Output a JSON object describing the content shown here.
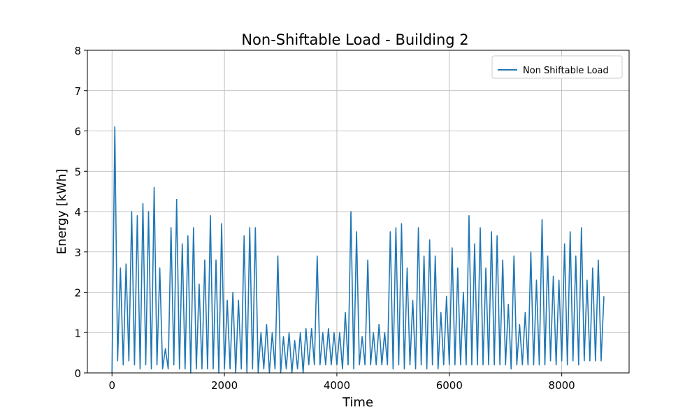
{
  "chart_data": {
    "type": "line",
    "title": "Non-Shiftable Load - Building 2",
    "xlabel": "Time",
    "ylabel": "Energy [kWh]",
    "x": [
      0,
      50,
      100,
      150,
      200,
      250,
      300,
      350,
      400,
      450,
      500,
      550,
      600,
      650,
      700,
      750,
      800,
      850,
      900,
      950,
      1000,
      1050,
      1100,
      1150,
      1200,
      1250,
      1300,
      1350,
      1400,
      1450,
      1500,
      1550,
      1600,
      1650,
      1700,
      1750,
      1800,
      1850,
      1900,
      1950,
      2000,
      2050,
      2100,
      2150,
      2200,
      2250,
      2300,
      2350,
      2400,
      2450,
      2500,
      2550,
      2600,
      2650,
      2700,
      2750,
      2800,
      2850,
      2900,
      2950,
      3000,
      3050,
      3100,
      3150,
      3200,
      3250,
      3300,
      3350,
      3400,
      3450,
      3500,
      3550,
      3600,
      3650,
      3700,
      3750,
      3800,
      3850,
      3900,
      3950,
      4000,
      4050,
      4100,
      4150,
      4200,
      4250,
      4300,
      4350,
      4400,
      4450,
      4500,
      4550,
      4600,
      4650,
      4700,
      4750,
      4800,
      4850,
      4900,
      4950,
      5000,
      5050,
      5100,
      5150,
      5200,
      5250,
      5300,
      5350,
      5400,
      5450,
      5500,
      5550,
      5600,
      5650,
      5700,
      5750,
      5800,
      5850,
      5900,
      5950,
      6000,
      6050,
      6100,
      6150,
      6200,
      6250,
      6300,
      6350,
      6400,
      6450,
      6500,
      6550,
      6600,
      6650,
      6700,
      6750,
      6800,
      6850,
      6900,
      6950,
      7000,
      7050,
      7100,
      7150,
      7200,
      7250,
      7300,
      7350,
      7400,
      7450,
      7500,
      7550,
      7600,
      7650,
      7700,
      7750,
      7800,
      7850,
      7900,
      7950,
      8000,
      8050,
      8100,
      8150,
      8200,
      8250,
      8300,
      8350,
      8400,
      8450,
      8500,
      8550,
      8600,
      8650,
      8700,
      8750
    ],
    "series": [
      {
        "name": "Non Shiftable Load",
        "color": "#1f77b4",
        "values": [
          0.0,
          6.1,
          0.3,
          2.6,
          0.2,
          2.7,
          0.3,
          4.0,
          0.2,
          3.9,
          0.1,
          4.2,
          0.2,
          4.0,
          0.1,
          4.6,
          0.2,
          2.6,
          0.1,
          0.6,
          0.1,
          3.6,
          0.2,
          4.3,
          0.1,
          3.2,
          0.1,
          3.4,
          0.0,
          3.6,
          0.1,
          2.2,
          0.1,
          2.8,
          0.1,
          3.9,
          0.1,
          2.8,
          0.0,
          3.7,
          0.1,
          1.8,
          0.1,
          2.0,
          0.0,
          1.8,
          0.1,
          3.4,
          0.0,
          3.6,
          0.1,
          3.6,
          0.0,
          1.0,
          0.1,
          1.2,
          0.0,
          1.0,
          0.1,
          2.9,
          0.0,
          0.9,
          0.1,
          1.0,
          0.0,
          0.8,
          0.1,
          1.0,
          0.0,
          1.1,
          0.2,
          1.1,
          0.2,
          2.9,
          0.2,
          1.0,
          0.2,
          1.1,
          0.2,
          1.0,
          0.2,
          1.0,
          0.1,
          1.5,
          0.2,
          4.0,
          0.1,
          3.5,
          0.2,
          0.9,
          0.2,
          2.8,
          0.2,
          1.0,
          0.2,
          1.2,
          0.2,
          1.0,
          0.2,
          3.5,
          0.1,
          3.6,
          0.2,
          3.7,
          0.1,
          2.6,
          0.2,
          1.8,
          0.1,
          3.6,
          0.2,
          2.9,
          0.1,
          3.3,
          0.2,
          2.9,
          0.1,
          1.5,
          0.2,
          1.9,
          0.2,
          3.1,
          0.2,
          2.6,
          0.2,
          2.0,
          0.2,
          3.9,
          0.2,
          3.2,
          0.2,
          3.6,
          0.2,
          2.6,
          0.2,
          3.5,
          0.2,
          3.4,
          0.2,
          2.8,
          0.2,
          1.7,
          0.1,
          2.9,
          0.2,
          1.2,
          0.2,
          1.5,
          0.2,
          3.0,
          0.2,
          2.3,
          0.2,
          3.8,
          0.2,
          2.9,
          0.3,
          2.4,
          0.2,
          2.3,
          0.3,
          3.2,
          0.2,
          3.5,
          0.3,
          2.9,
          0.2,
          3.6,
          0.3,
          2.3,
          0.3,
          2.6,
          0.3,
          2.8,
          0.3,
          1.9
        ]
      }
    ],
    "xlim": [
      -438,
      9198
    ],
    "ylim": [
      0,
      8
    ],
    "xticks": [
      0,
      2000,
      4000,
      6000,
      8000
    ],
    "yticks": [
      0,
      1,
      2,
      3,
      4,
      5,
      6,
      7,
      8
    ],
    "grid": true,
    "legend": "upper right"
  }
}
